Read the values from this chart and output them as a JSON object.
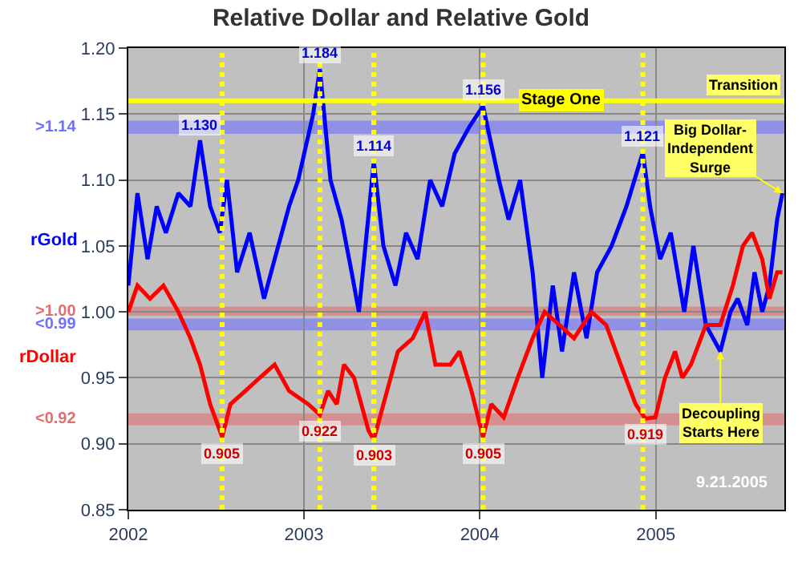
{
  "chart_data": {
    "type": "line",
    "title": "Relative Dollar and Relative Gold",
    "x": [
      "2002-01-01",
      "2002-01-20",
      "2002-02-10",
      "2002-03-01",
      "2002-03-20",
      "2002-04-15",
      "2002-05-10",
      "2002-05-30",
      "2002-06-20",
      "2002-07-10",
      "2002-07-25",
      "2002-08-15",
      "2002-09-10",
      "2002-10-10",
      "2002-11-01",
      "2002-12-01",
      "2002-12-20",
      "2003-01-20",
      "2003-02-03",
      "2003-02-25",
      "2003-03-20",
      "2003-04-10",
      "2003-04-25",
      "2003-05-26",
      "2003-06-15",
      "2003-07-10",
      "2003-08-01",
      "2003-08-25",
      "2003-09-20",
      "2003-10-15",
      "2003-11-10",
      "2003-12-10",
      "2004-01-08",
      "2004-02-10",
      "2004-03-01",
      "2004-03-25",
      "2004-04-20",
      "2004-05-10",
      "2004-06-01",
      "2004-06-20",
      "2004-07-15",
      "2004-08-10",
      "2004-09-01",
      "2004-10-01",
      "2004-11-01",
      "2004-12-05",
      "2004-12-20",
      "2005-01-10",
      "2005-02-01",
      "2005-03-01",
      "2005-03-20",
      "2005-04-15",
      "2005-05-15",
      "2005-06-05",
      "2005-06-20",
      "2005-07-10",
      "2005-07-25",
      "2005-08-10",
      "2005-08-25",
      "2005-09-10",
      "2005-09-21"
    ],
    "series": [
      {
        "name": "rGold",
        "color": "#0000ff",
        "values": [
          1.02,
          1.09,
          1.04,
          1.08,
          1.06,
          1.09,
          1.08,
          1.13,
          1.08,
          1.06,
          1.1,
          1.03,
          1.06,
          1.01,
          1.04,
          1.08,
          1.1,
          1.15,
          1.184,
          1.1,
          1.07,
          1.03,
          1.0,
          1.114,
          1.05,
          1.02,
          1.06,
          1.04,
          1.1,
          1.08,
          1.12,
          1.14,
          1.156,
          1.1,
          1.07,
          1.1,
          1.03,
          0.95,
          1.02,
          0.97,
          1.03,
          0.98,
          1.03,
          1.05,
          1.08,
          1.121,
          1.08,
          1.04,
          1.06,
          1.0,
          1.05,
          0.99,
          0.97,
          1.0,
          1.01,
          0.99,
          1.03,
          1.0,
          1.02,
          1.07,
          1.09
        ]
      },
      {
        "name": "rDollar",
        "color": "#ff0000",
        "x": [
          "2002-01-01",
          "2002-01-20",
          "2002-02-15",
          "2002-03-15",
          "2002-04-15",
          "2002-05-10",
          "2002-05-30",
          "2002-06-20",
          "2002-07-15",
          "2002-08-01",
          "2002-09-01",
          "2002-10-01",
          "2002-11-01",
          "2002-12-01",
          "2003-01-10",
          "2003-02-03",
          "2003-02-20",
          "2003-03-10",
          "2003-03-25",
          "2003-04-15",
          "2003-05-15",
          "2003-05-26",
          "2003-06-15",
          "2003-07-15",
          "2003-08-15",
          "2003-09-10",
          "2003-10-01",
          "2003-11-01",
          "2003-11-20",
          "2003-12-15",
          "2004-01-08",
          "2004-01-25",
          "2004-02-20",
          "2004-03-20",
          "2004-04-20",
          "2004-05-15",
          "2004-06-15",
          "2004-07-15",
          "2004-08-20",
          "2004-09-20",
          "2004-10-20",
          "2004-11-20",
          "2004-12-10",
          "2004-12-31",
          "2005-01-20",
          "2005-02-10",
          "2005-02-25",
          "2005-03-15",
          "2005-04-15",
          "2005-05-15",
          "2005-06-10",
          "2005-07-01",
          "2005-07-20",
          "2005-08-10",
          "2005-08-25",
          "2005-09-10",
          "2005-09-21"
        ],
        "values": [
          1.0,
          1.02,
          1.01,
          1.02,
          1.0,
          0.98,
          0.96,
          0.93,
          0.905,
          0.93,
          0.94,
          0.95,
          0.96,
          0.94,
          0.93,
          0.922,
          0.94,
          0.93,
          0.96,
          0.95,
          0.91,
          0.903,
          0.93,
          0.97,
          0.98,
          1.0,
          0.96,
          0.96,
          0.97,
          0.94,
          0.905,
          0.93,
          0.92,
          0.95,
          0.98,
          1.0,
          0.99,
          0.98,
          1.0,
          0.99,
          0.96,
          0.93,
          0.919,
          0.92,
          0.95,
          0.97,
          0.95,
          0.96,
          0.99,
          0.99,
          1.02,
          1.05,
          1.06,
          1.04,
          1.01,
          1.03,
          1.03
        ]
      }
    ],
    "xlim": [
      "2002-01-01",
      "2005-09-25"
    ],
    "xticks": [
      {
        "value": "2002-01-01",
        "label": "2002"
      },
      {
        "value": "2003-01-01",
        "label": "2003"
      },
      {
        "value": "2004-01-01",
        "label": "2004"
      },
      {
        "value": "2005-01-01",
        "label": "2005"
      }
    ],
    "ylim": [
      0.85,
      1.2
    ],
    "yticks": [
      {
        "value": 0.85,
        "label": "0.85"
      },
      {
        "value": 0.9,
        "label": "0.90"
      },
      {
        "value": 0.95,
        "label": "0.95"
      },
      {
        "value": 1.0,
        "label": "1.00"
      },
      {
        "value": 1.05,
        "label": "1.05"
      },
      {
        "value": 1.1,
        "label": "1.10"
      },
      {
        "value": 1.15,
        "label": "1.15"
      },
      {
        "value": 1.2,
        "label": "1.20"
      }
    ],
    "grid": true,
    "legend": false,
    "marker": "none",
    "line_style": "solid",
    "bands": [
      {
        "axis": "y",
        "from": 1.135,
        "to": 1.145,
        "label": ">1.14",
        "color": "#7070ff"
      },
      {
        "axis": "y",
        "from": 0.997,
        "to": 1.004,
        "label": ">1.00",
        "color": "#e07070"
      },
      {
        "axis": "y",
        "from": 0.986,
        "to": 0.995,
        "label": "<0.99",
        "color": "#7070ff"
      },
      {
        "axis": "y",
        "from": 0.914,
        "to": 0.923,
        "label": "<0.92",
        "color": "#e07070"
      }
    ],
    "ref_lines": [
      {
        "axis": "y",
        "value": 1.16,
        "label": "Stage One",
        "color": "#ffff00",
        "line_style": "solid"
      },
      {
        "axis": "x",
        "value": "2002-07-15",
        "color": "#ffff00",
        "line_style": "dotted"
      },
      {
        "axis": "x",
        "value": "2003-02-03",
        "color": "#ffff00",
        "line_style": "dotted"
      },
      {
        "axis": "x",
        "value": "2003-05-26",
        "color": "#ffff00",
        "line_style": "dotted"
      },
      {
        "axis": "x",
        "value": "2004-01-08",
        "color": "#ffff00",
        "line_style": "dotted"
      },
      {
        "axis": "x",
        "value": "2004-12-05",
        "color": "#ffff00",
        "line_style": "dotted"
      }
    ],
    "annotations": [
      {
        "text": "1.130",
        "x": "2002-05-30",
        "y": 1.13
      },
      {
        "text": "1.184",
        "x": "2003-02-03",
        "y": 1.184
      },
      {
        "text": "1.114",
        "x": "2003-05-26",
        "y": 1.114
      },
      {
        "text": "1.156",
        "x": "2004-01-08",
        "y": 1.156
      },
      {
        "text": "1.121",
        "x": "2004-12-05",
        "y": 1.121
      },
      {
        "text": "0.905",
        "x": "2002-07-15",
        "y": 0.905
      },
      {
        "text": "0.922",
        "x": "2003-02-03",
        "y": 0.922
      },
      {
        "text": "0.903",
        "x": "2003-05-26",
        "y": 0.903
      },
      {
        "text": "0.905",
        "x": "2004-01-08",
        "y": 0.905
      },
      {
        "text": "0.919",
        "x": "2004-12-10",
        "y": 0.919
      },
      {
        "text": "Big Dollar-\nIndependent\nSurge",
        "x": "2005-09-21",
        "y": 1.09
      },
      {
        "text": "Decoupling\nStarts Here",
        "x": "2005-05-15",
        "y": 0.97
      },
      {
        "text": "Transition",
        "x": "2005-07-01",
        "y": 1.16
      },
      "9.21.2005"
    ]
  }
}
